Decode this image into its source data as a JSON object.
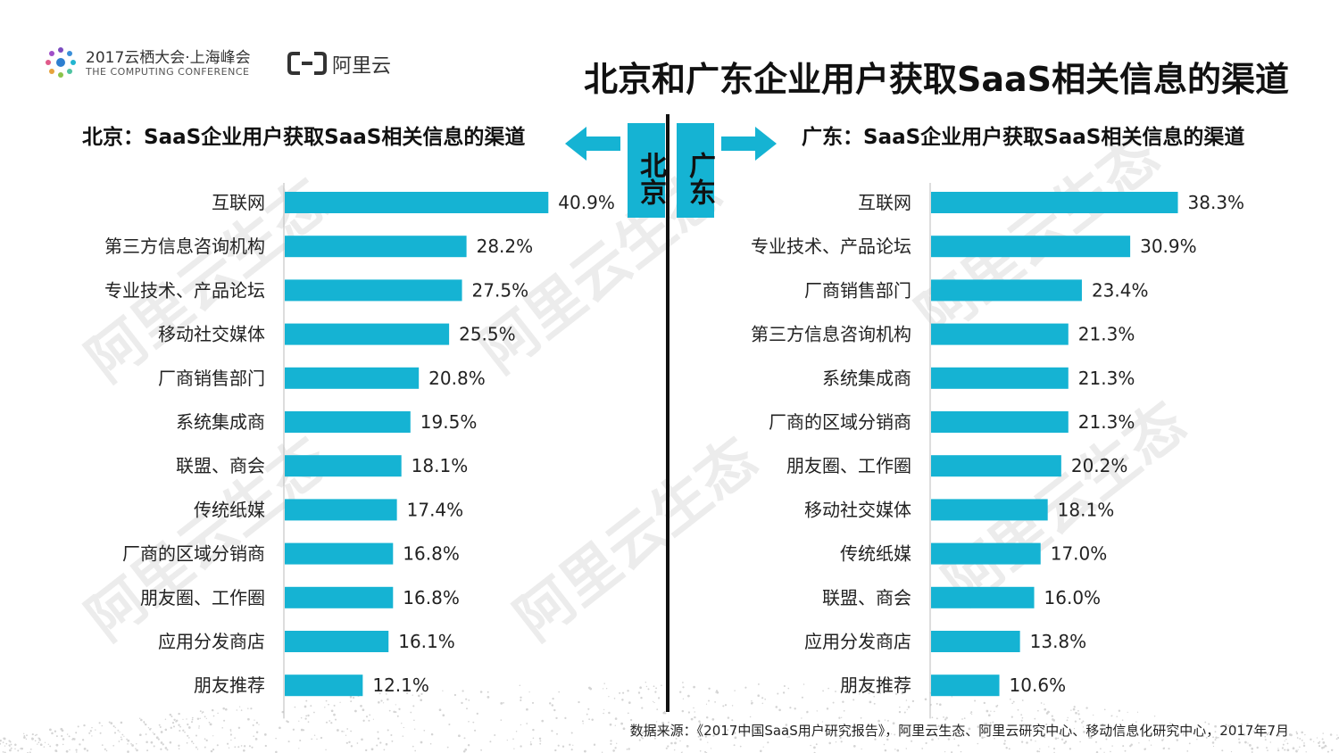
{
  "header": {
    "conference_name": "2017云栖大会·上海峰会",
    "conference_sub": "THE COMPUTING CONFERENCE",
    "brand": "阿里云",
    "title": "北京和广东企业用户获取SaaS相关信息的渠道"
  },
  "watermark": "阿里云生态",
  "labels": {
    "beijing": "北京",
    "guangdong": "广东"
  },
  "colors": {
    "bar": "#15b3d3",
    "text": "#222222",
    "divider": "#111111"
  },
  "chart_data": [
    {
      "type": "bar",
      "orientation": "horizontal",
      "title": "北京：SaaS企业用户获取SaaS相关信息的渠道",
      "categories": [
        "互联网",
        "第三方信息咨询机构",
        "专业技术、产品论坛",
        "移动社交媒体",
        "厂商销售部门",
        "系统集成商",
        "联盟、商会",
        "传统纸媒",
        "厂商的区域分销商",
        "朋友圈、工作圈",
        "应用分发商店",
        "朋友推荐"
      ],
      "values": [
        40.9,
        28.2,
        27.5,
        25.5,
        20.8,
        19.5,
        18.1,
        17.4,
        16.8,
        16.8,
        16.1,
        12.1
      ],
      "value_labels": [
        "40.9%",
        "28.2%",
        "27.5%",
        "25.5%",
        "20.8%",
        "19.5%",
        "18.1%",
        "17.4%",
        "16.8%",
        "16.8%",
        "16.1%",
        "12.1%"
      ],
      "unit": "%",
      "xlim": [
        0,
        100
      ]
    },
    {
      "type": "bar",
      "orientation": "horizontal",
      "title": "广东：SaaS企业用户获取SaaS相关信息的渠道",
      "categories": [
        "互联网",
        "专业技术、产品论坛",
        "厂商销售部门",
        "第三方信息咨询机构",
        "系统集成商",
        "厂商的区域分销商",
        "朋友圈、工作圈",
        "移动社交媒体",
        "传统纸媒",
        "联盟、商会",
        "应用分发商店",
        "朋友推荐"
      ],
      "values": [
        38.3,
        30.9,
        23.4,
        21.3,
        21.3,
        21.3,
        20.2,
        18.1,
        17.0,
        16.0,
        13.8,
        10.6
      ],
      "value_labels": [
        "38.3%",
        "30.9%",
        "23.4%",
        "21.3%",
        "21.3%",
        "21.3%",
        "20.2%",
        "18.1%",
        "17.0%",
        "16.0%",
        "13.8%",
        "10.6%"
      ],
      "unit": "%",
      "xlim": [
        0,
        100
      ]
    }
  ],
  "footer": {
    "source": "数据来源：《2017中国SaaS用户研究报告》，阿里云生态、阿里云研究中心、移动信息化研究中心，2017年7月"
  }
}
